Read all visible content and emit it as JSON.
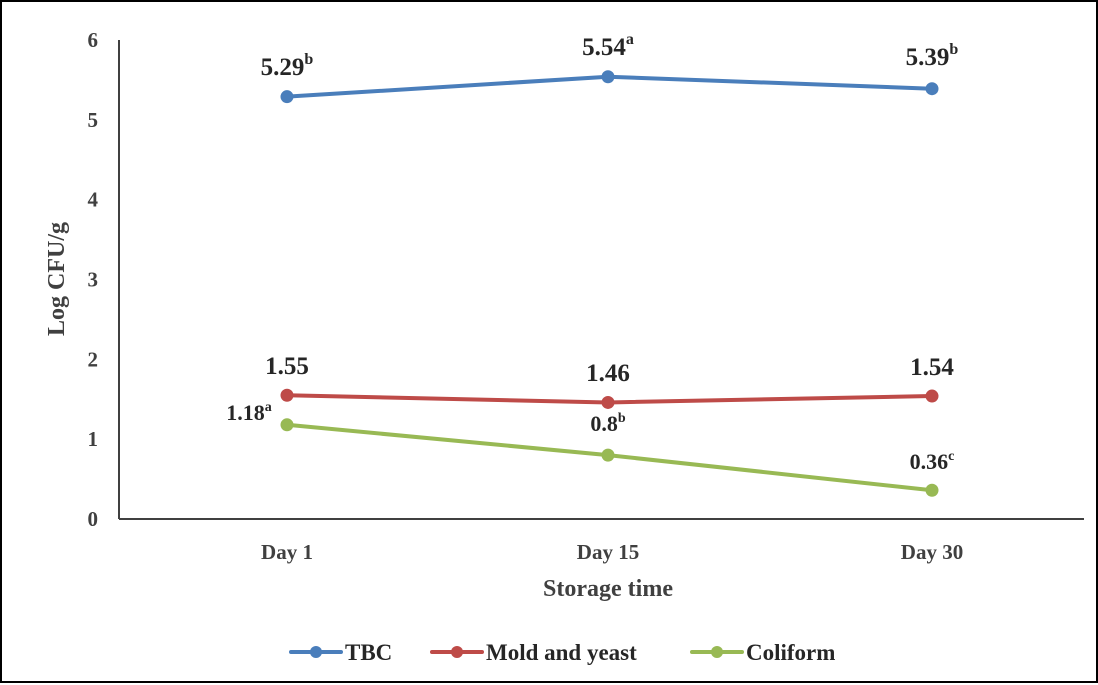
{
  "chart_data": {
    "type": "line",
    "title": "",
    "xlabel": "Storage time",
    "ylabel": "Log CFU/g",
    "categories": [
      "Day 1",
      "Day 15",
      "Day 30"
    ],
    "ylim": [
      0,
      6
    ],
    "yticks": [
      "0",
      "1",
      "2",
      "3",
      "4",
      "5",
      "6"
    ],
    "grid": false,
    "legend_position": "bottom",
    "series": [
      {
        "name": "TBC",
        "color": "#4a7ebb",
        "values": [
          5.29,
          5.54,
          5.39
        ],
        "labels": [
          {
            "value": "5.29",
            "sup": "b"
          },
          {
            "value": "5.54",
            "sup": "a"
          },
          {
            "value": "5.39",
            "sup": "b"
          }
        ]
      },
      {
        "name": "Mold and yeast",
        "color": "#be4b48",
        "values": [
          1.55,
          1.46,
          1.54
        ],
        "labels": [
          {
            "value": "1.55",
            "sup": ""
          },
          {
            "value": "1.46",
            "sup": ""
          },
          {
            "value": "1.54",
            "sup": ""
          }
        ]
      },
      {
        "name": "Coliform",
        "color": "#98b954",
        "values": [
          1.18,
          0.8,
          0.36
        ],
        "labels": [
          {
            "value": "1.18",
            "sup": "a"
          },
          {
            "value": "0.8",
            "sup": "b"
          },
          {
            "value": "0.36",
            "sup": "c"
          }
        ]
      }
    ]
  }
}
